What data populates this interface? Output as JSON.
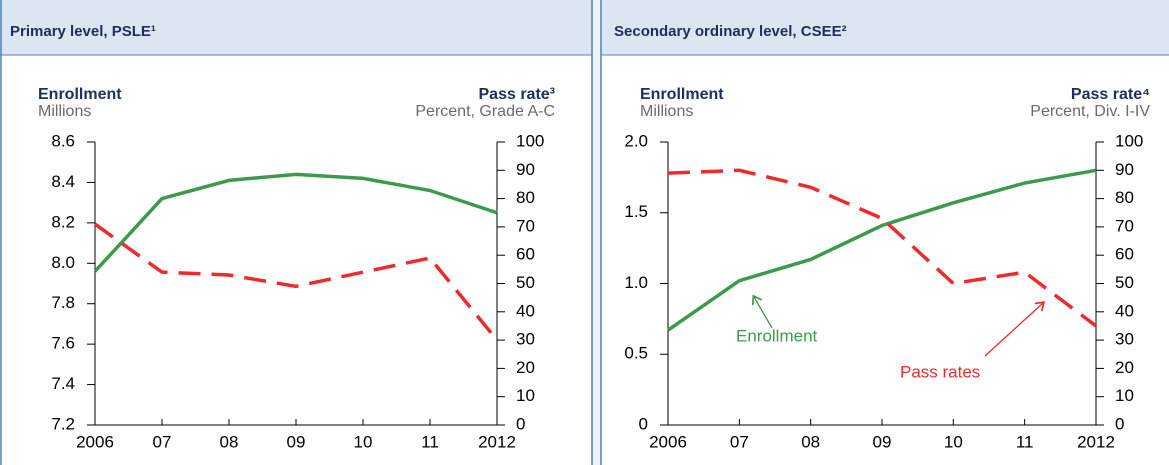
{
  "chart_data": [
    {
      "type": "line",
      "title": "Primary level, PSLE¹",
      "y_label": "Enrollment",
      "y_units": "Millions",
      "y2_label": "Pass rate³",
      "y2_units": "Percent, Grade A-C",
      "categories": [
        "2006",
        "07",
        "08",
        "09",
        "10",
        "11",
        "2012"
      ],
      "ylim": [
        7.2,
        8.6
      ],
      "yticks": [
        7.2,
        7.4,
        7.6,
        7.8,
        {
          "value": 8.0,
          "label": "8.0"
        },
        8.2,
        8.4,
        8.6
      ],
      "y2lim": [
        0,
        100
      ],
      "y2ticks": [
        0,
        10,
        20,
        30,
        40,
        50,
        60,
        70,
        80,
        90,
        100
      ],
      "series": [
        {
          "color": "#3c9a4c",
          "linestyle": "solid",
          "values": [
            7.96,
            8.32,
            8.41,
            8.44,
            8.42,
            8.36,
            8.25
          ]
        },
        {
          "color": "#ee2a2a",
          "linestyle": "dashed",
          "axis": "y2",
          "values": [
            71,
            54,
            53,
            49,
            54,
            59,
            30
          ]
        }
      ]
    },
    {
      "type": "line",
      "title": "Secondary ordinary level, CSEE²",
      "y_label": "Enrollment",
      "y_units": "Millions",
      "y2_label": "Pass rate⁴",
      "y2_units": "Percent, Div. I-IV",
      "categories": [
        "2006",
        "07",
        "08",
        "09",
        "10",
        "11",
        "2012"
      ],
      "ylim": [
        0,
        2.0
      ],
      "yticks": [
        0,
        0.5,
        {
          "value": 1.0,
          "label": "1.0"
        },
        1.5,
        {
          "value": 2.0,
          "label": "2.0"
        }
      ],
      "y2lim": [
        0,
        100
      ],
      "y2ticks": [
        0,
        10,
        20,
        30,
        40,
        50,
        60,
        70,
        80,
        90,
        100
      ],
      "series": [
        {
          "name": "Enrollment",
          "color": "#3c9a4c",
          "linestyle": "solid",
          "values": [
            0.67,
            1.02,
            1.17,
            1.41,
            1.57,
            1.71,
            1.8
          ]
        },
        {
          "name": "Pass rates",
          "color": "#ee2a2a",
          "linestyle": "dashed",
          "axis": "y2",
          "values": [
            89,
            90,
            84,
            73,
            50,
            54,
            35
          ]
        }
      ]
    }
  ]
}
